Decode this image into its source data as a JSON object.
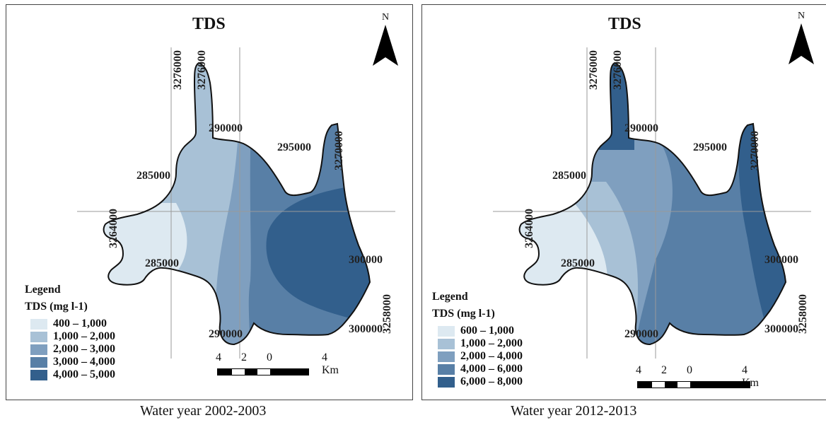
{
  "panels": [
    {
      "title": "TDS",
      "north": "N",
      "caption": "Water year 2002-2003",
      "legend": {
        "title": "Legend",
        "subtitle": "TDS (mg l-1)",
        "classes": [
          {
            "label": "400 – 1,000",
            "color": "#dde9f1"
          },
          {
            "label": "1,000 – 2,000",
            "color": "#a8c1d6"
          },
          {
            "label": "2,000 – 3,000",
            "color": "#7f9fbf"
          },
          {
            "label": "3,000 – 4,000",
            "color": "#587fa6"
          },
          {
            "label": "4,000 – 5,000",
            "color": "#325f8c"
          }
        ]
      },
      "coords": {
        "top_v1": "3276000",
        "top_v2": "3276000",
        "top_h": "290000",
        "right_h": "295000",
        "right_v": "3270000",
        "left_h": "285000",
        "left_v": "3264000",
        "mid_h": "285000",
        "lower_right_h": "300000",
        "bottom_h": "290000",
        "bottom_right_h": "300000",
        "right_v2": "3258000"
      },
      "scale": {
        "t4a": "4",
        "t2": "2",
        "t0": "0",
        "t4b": "4 Km"
      }
    },
    {
      "title": "TDS",
      "north": "N",
      "caption": "Water year 2012-2013",
      "legend": {
        "title": "Legend",
        "subtitle": "TDS (mg l-1)",
        "classes": [
          {
            "label": "600 – 1,000",
            "color": "#dde9f1"
          },
          {
            "label": "1,000 – 2,000",
            "color": "#a8c1d6"
          },
          {
            "label": "2,000 – 4,000",
            "color": "#7f9fbf"
          },
          {
            "label": "4,000 – 6,000",
            "color": "#587fa6"
          },
          {
            "label": "6,000 – 8,000",
            "color": "#325f8c"
          }
        ]
      },
      "coords": {
        "top_v1": "3276000",
        "top_v2": "3276000",
        "top_h": "290000",
        "right_h": "295000",
        "right_v": "3270000",
        "left_h": "285000",
        "left_v": "3264000",
        "mid_h": "285000",
        "lower_right_h": "300000",
        "bottom_h": "290000",
        "bottom_right_h": "300000",
        "right_v2": "3258000"
      },
      "scale": {
        "t4a": "4",
        "t2": "2",
        "t0": "0",
        "t4b": "4 Km"
      }
    }
  ]
}
